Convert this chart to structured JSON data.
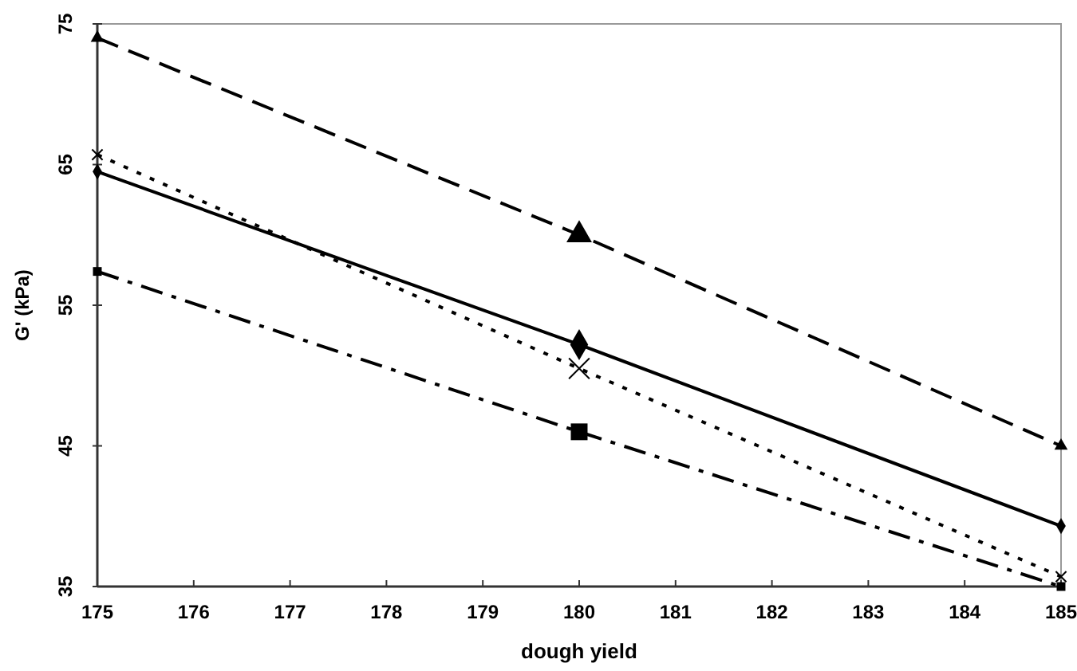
{
  "chart_data": {
    "type": "line",
    "xlabel": "dough yield",
    "ylabel": "G' (kPa)",
    "x": [
      175,
      180,
      185
    ],
    "series": [
      {
        "color": "#000000",
        "values": [
          74.0,
          60.0,
          45.0
        ],
        "marker": "triangle",
        "line_style": "dashed"
      },
      {
        "color": "#000000",
        "values": [
          64.5,
          52.2,
          39.3
        ],
        "marker": "diamond",
        "line_style": "solid"
      },
      {
        "color": "#000000",
        "values": [
          65.7,
          50.5,
          35.7
        ],
        "marker": "cross",
        "line_style": "dotted"
      },
      {
        "color": "#000000",
        "values": [
          57.4,
          46.0,
          35.0
        ],
        "marker": "square",
        "line_style": "dashdot"
      }
    ],
    "xlim": [
      175,
      185
    ],
    "xticks": [
      175,
      176,
      177,
      178,
      179,
      180,
      181,
      182,
      183,
      184,
      185
    ],
    "ylim": [
      35,
      75
    ],
    "yticks": [
      35,
      45,
      55,
      65,
      75
    ],
    "grid": false
  }
}
